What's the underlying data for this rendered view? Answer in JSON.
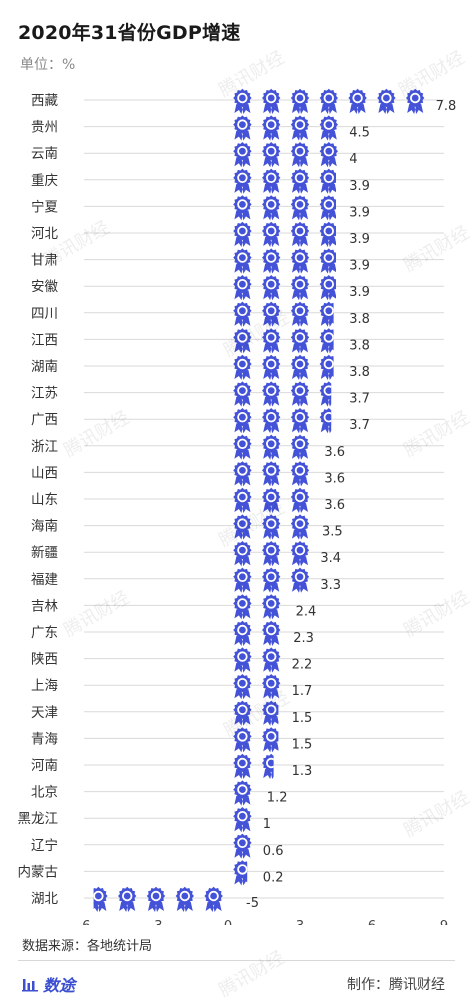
{
  "header": {
    "title": "2020年31省份GDP增速",
    "unit": "单位：%"
  },
  "footer": {
    "source": "数据来源：各地统计局",
    "brand": "数途",
    "maker": "制作：腾讯财经"
  },
  "watermark": "腾讯财经",
  "colors": {
    "icon_fill": "#4452d8",
    "icon_center": "#ffffff",
    "grid": "#d9d9d9",
    "label": "#333333"
  },
  "chart_data": {
    "type": "bar",
    "mark": "ribbon-icon",
    "orientation": "horizontal",
    "categories": [
      "西藏",
      "贵州",
      "云南",
      "重庆",
      "宁夏",
      "河北",
      "甘肃",
      "安徽",
      "四川",
      "江西",
      "湖南",
      "江苏",
      "广西",
      "浙江",
      "山西",
      "山东",
      "海南",
      "新疆",
      "福建",
      "吉林",
      "广东",
      "陕西",
      "上海",
      "天津",
      "青海",
      "河南",
      "北京",
      "黑龙江",
      "辽宁",
      "内蒙古",
      "湖北"
    ],
    "values": [
      7.8,
      4.5,
      4,
      3.9,
      3.9,
      3.9,
      3.9,
      3.9,
      3.8,
      3.8,
      3.8,
      3.7,
      3.7,
      3.6,
      3.6,
      3.6,
      3.5,
      3.4,
      3.3,
      2.4,
      2.3,
      2.2,
      1.7,
      1.5,
      1.5,
      1.3,
      1.2,
      1,
      0.6,
      0.2,
      -5
    ],
    "value_labels": [
      "7.8",
      "4.5",
      "4",
      "3.9",
      "3.9",
      "3.9",
      "3.9",
      "3.9",
      "3.8",
      "3.8",
      "3.8",
      "3.7",
      "3.7",
      "3.6",
      "3.6",
      "3.6",
      "3.5",
      "3.4",
      "3.3",
      "2.4",
      "2.3",
      "2.2",
      "1.7",
      "1.5",
      "1.5",
      "1.3",
      "1.2",
      "1",
      "0.6",
      "0.2",
      "-5"
    ],
    "xlim": [
      -6,
      9
    ],
    "xticks": [
      -6,
      -3,
      0,
      3,
      6,
      9
    ],
    "icon_unit": 1.2,
    "grid": true
  }
}
